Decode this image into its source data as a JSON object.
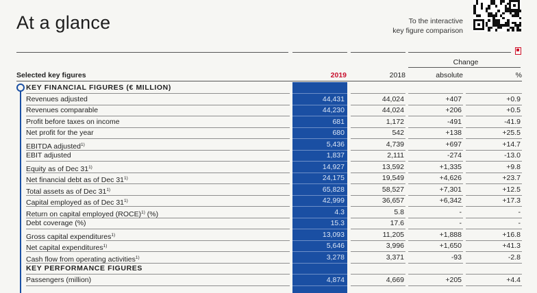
{
  "header": {
    "title": "At a glance",
    "interactive_line1": "To the interactive",
    "interactive_line2": "key figure comparison"
  },
  "columns": {
    "label": "Selected key figures",
    "change": "Change",
    "y2019": "2019",
    "y2018": "2018",
    "absolute": "absolute",
    "percent": "%"
  },
  "colors": {
    "accent_blue": "#1a4fa3",
    "highlight_red": "#c8102e"
  },
  "rows": [
    {
      "type": "section",
      "label": "KEY FINANCIAL FIGURES (€ MILLION)"
    },
    {
      "label": "Revenues adjusted",
      "v2019": "44,431",
      "v2018": "44,024",
      "abs": "+407",
      "pct": "+0.9"
    },
    {
      "label": "Revenues comparable",
      "v2019": "44,230",
      "v2018": "44,024",
      "abs": "+206",
      "pct": "+0.5"
    },
    {
      "label": "Profit before taxes on income",
      "v2019": "681",
      "v2018": "1,172",
      "abs": "-491",
      "pct": "-41.9"
    },
    {
      "label": "Net profit for the year",
      "v2019": "680",
      "v2018": "542",
      "abs": "+138",
      "pct": "+25.5"
    },
    {
      "label": "EBITDA adjusted",
      "note": "1)",
      "v2019": "5,436",
      "v2018": "4,739",
      "abs": "+697",
      "pct": "+14.7"
    },
    {
      "label": "EBIT adjusted",
      "v2019": "1,837",
      "v2018": "2,111",
      "abs": "-274",
      "pct": "-13.0"
    },
    {
      "label": "Equity as of Dec 31",
      "note": "1)",
      "v2019": "14,927",
      "v2018": "13,592",
      "abs": "+1,335",
      "pct": "+9.8"
    },
    {
      "label": "Net financial debt as of Dec 31",
      "note": "1)",
      "v2019": "24,175",
      "v2018": "19,549",
      "abs": "+4,626",
      "pct": "+23.7"
    },
    {
      "label": "Total assets as of Dec 31",
      "note": "1)",
      "v2019": "65,828",
      "v2018": "58,527",
      "abs": "+7,301",
      "pct": "+12.5"
    },
    {
      "label": "Capital employed as of Dec 31",
      "note": "1)",
      "v2019": "42,999",
      "v2018": "36,657",
      "abs": "+6,342",
      "pct": "+17.3"
    },
    {
      "label": "Return on capital employed (ROCE)",
      "note": "1)",
      "suffix": " (%)",
      "v2019": "4.3",
      "v2018": "5.8",
      "abs": "-",
      "pct": "-"
    },
    {
      "label": "Debt coverage (%)",
      "v2019": "15.3",
      "v2018": "17.6",
      "abs": "-",
      "pct": "-"
    },
    {
      "label": "Gross capital expenditures",
      "note": "1)",
      "v2019": "13,093",
      "v2018": "11,205",
      "abs": "+1,888",
      "pct": "+16.8"
    },
    {
      "label": "Net capital expenditures",
      "note": "1)",
      "v2019": "5,646",
      "v2018": "3,996",
      "abs": "+1,650",
      "pct": "+41.3"
    },
    {
      "label": "Cash flow from operating activities",
      "note": "1)",
      "v2019": "3,278",
      "v2018": "3,371",
      "abs": "-93",
      "pct": "-2.8"
    },
    {
      "type": "section",
      "label": "KEY PERFORMANCE FIGURES"
    },
    {
      "label": "Passengers (million)",
      "v2019": "4,874",
      "v2018": "4,669",
      "abs": "+205",
      "pct": "+4.4"
    }
  ]
}
